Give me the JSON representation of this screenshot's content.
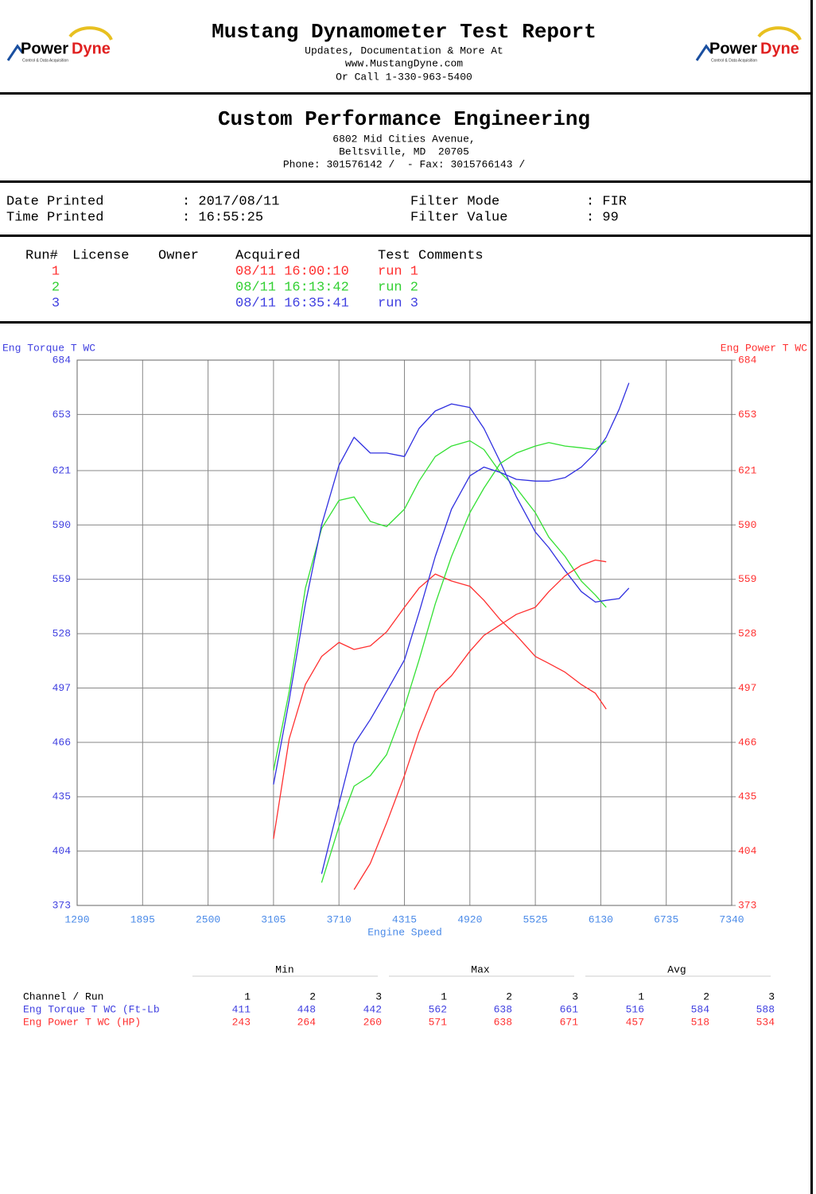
{
  "header": {
    "title": "Mustang Dynamometer Test Report",
    "lines": [
      "Updates, Documentation & More At",
      "www.MustangDyne.com",
      "Or Call 1-330-963-5400"
    ]
  },
  "logo": {
    "part1": "Power",
    "part2": "Dyne",
    "tagline": "Control & Data Acquisition"
  },
  "shop": {
    "name": "Custom Performance Engineering",
    "lines": [
      "6802 Mid Cities Avenue,",
      "Beltsville, MD  20705",
      "Phone: 301576142 /  - Fax: 3015766143 /"
    ]
  },
  "info": {
    "rows": [
      [
        "Date Printed",
        ": 2017/08/11",
        "Filter Mode",
        ": FIR"
      ],
      [
        "Time Printed",
        ": 16:55:25",
        "Filter Value",
        ": 99"
      ]
    ]
  },
  "runs": {
    "headers": [
      "Run#",
      "License",
      "Owner",
      "Acquired",
      "Test Comments"
    ],
    "rows": [
      [
        "1",
        "08/11 16:00:10",
        "run 1"
      ],
      [
        "2",
        "08/11 16:13:42",
        "run 2"
      ],
      [
        "3",
        "08/11 16:35:41",
        "run 3"
      ]
    ]
  },
  "chart_data": {
    "type": "line",
    "y_label": "Eng Torque T WC",
    "y2_label": "Eng Power T WC",
    "x_label": "Engine Speed",
    "x": [
      3105,
      3250,
      3400,
      3550,
      3710,
      3850,
      4000,
      4150,
      4315,
      4450,
      4600,
      4750,
      4920,
      5050,
      5200,
      5350,
      5525,
      5650,
      5800,
      5950,
      6080,
      6180,
      6300,
      6390
    ],
    "series": [
      {
        "color": "#ff3030",
        "values": [
          411,
          468,
          499,
          515,
          523,
          519,
          521,
          529,
          543,
          554,
          562,
          558,
          555,
          547,
          536,
          527,
          515,
          511,
          506,
          499,
          494,
          485,
          null,
          null
        ]
      },
      {
        "color": "#33e033",
        "values": [
          450,
          495,
          554,
          588,
          604,
          606,
          592,
          589,
          599,
          615,
          629,
          635,
          638,
          633,
          620,
          611,
          597,
          583,
          572,
          558,
          550,
          543,
          null,
          null
        ]
      },
      {
        "color": "#3030e0",
        "values": [
          442,
          490,
          545,
          590,
          624,
          640,
          631,
          631,
          629,
          645,
          655,
          659,
          657,
          645,
          626,
          606,
          586,
          577,
          564,
          552,
          546,
          547,
          548,
          554
        ]
      },
      {
        "color": "#ff3030",
        "axis": "y2",
        "values": [
          null,
          null,
          null,
          null,
          null,
          382,
          397,
          420,
          447,
          472,
          495,
          504,
          518,
          527,
          533,
          539,
          543,
          552,
          561,
          567,
          570,
          569,
          null,
          null
        ]
      },
      {
        "color": "#33e033",
        "axis": "y2",
        "values": [
          null,
          null,
          null,
          386,
          418,
          441,
          447,
          459,
          486,
          513,
          545,
          572,
          597,
          611,
          625,
          631,
          635,
          637,
          635,
          634,
          633,
          638,
          null,
          null
        ]
      },
      {
        "color": "#3030e0",
        "axis": "y2",
        "values": [
          null,
          null,
          null,
          391,
          431,
          465,
          479,
          495,
          513,
          540,
          572,
          599,
          618,
          623,
          620,
          616,
          615,
          615,
          617,
          623,
          631,
          640,
          656,
          671
        ]
      }
    ],
    "xlim": [
      1290,
      7340
    ],
    "xticks": [
      1290,
      1895,
      2500,
      3105,
      3710,
      4315,
      4920,
      5525,
      6130,
      6735,
      7340
    ],
    "ylim": [
      373,
      684
    ],
    "yticks": [
      373,
      404,
      435,
      466,
      497,
      528,
      559,
      590,
      621,
      653,
      684
    ],
    "y2lim": [
      373,
      684
    ],
    "y2ticks": [
      373,
      404,
      435,
      466,
      497,
      528,
      559,
      590,
      621,
      653,
      684
    ],
    "grid": true
  },
  "summary": {
    "groups": [
      "Min",
      "Max",
      "Avg"
    ],
    "channel_header": "Channel / Run",
    "run_labels": [
      "1",
      "2",
      "3"
    ],
    "rows": [
      {
        "channel": "Eng Torque T WC (Ft-Lb",
        "values": [
          411,
          448,
          442,
          562,
          638,
          661,
          516,
          584,
          588
        ]
      },
      {
        "channel": "Eng Power T WC (HP)",
        "values": [
          243,
          264,
          260,
          571,
          638,
          671,
          457,
          518,
          534
        ]
      }
    ]
  }
}
